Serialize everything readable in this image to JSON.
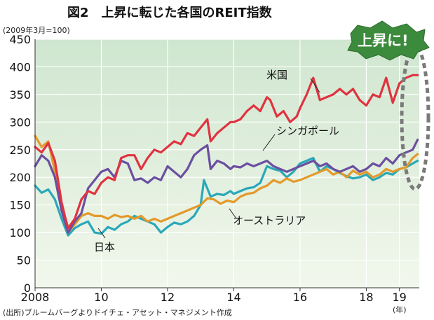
{
  "chart_data": {
    "type": "line",
    "title": "図2　上昇に転じた各国のREIT指数",
    "ylabel": "(2009年3月=100)",
    "xlabel": "(年)",
    "source": "(出所)ブルームバーグよりドイチェ・アセット・マネジメント作成",
    "callout": "上昇に!",
    "ylim": [
      0,
      450
    ],
    "yticks": [
      0,
      50,
      100,
      150,
      200,
      250,
      300,
      350,
      400,
      450
    ],
    "xlim": [
      2008.0,
      2019.6
    ],
    "xticks": [
      {
        "value": 2008,
        "label": "2008"
      },
      {
        "value": 2010,
        "label": "10"
      },
      {
        "value": 2012,
        "label": "12"
      },
      {
        "value": 2014,
        "label": "14"
      },
      {
        "value": 2016,
        "label": "16"
      },
      {
        "value": 2018,
        "label": "18"
      },
      {
        "value": 2019,
        "label": "19"
      }
    ],
    "grid": true,
    "series": [
      {
        "name": "米国",
        "color": "#e03340",
        "x": [
          2008.0,
          2008.2,
          2008.4,
          2008.6,
          2008.8,
          2008.9,
          2009.0,
          2009.2,
          2009.4,
          2009.6,
          2009.8,
          2010.0,
          2010.2,
          2010.4,
          2010.6,
          2010.8,
          2011.0,
          2011.2,
          2011.4,
          2011.6,
          2011.8,
          2012.0,
          2012.2,
          2012.4,
          2012.6,
          2012.8,
          2013.0,
          2013.2,
          2013.3,
          2013.5,
          2013.7,
          2013.9,
          2014.0,
          2014.2,
          2014.4,
          2014.6,
          2014.8,
          2015.0,
          2015.1,
          2015.3,
          2015.5,
          2015.7,
          2015.9,
          2016.0,
          2016.2,
          2016.4,
          2016.6,
          2016.8,
          2017.0,
          2017.2,
          2017.4,
          2017.6,
          2017.8,
          2018.0,
          2018.2,
          2018.4,
          2018.6,
          2018.8,
          2019.0,
          2019.2,
          2019.4,
          2019.55
        ],
        "values": [
          255,
          245,
          262,
          230,
          155,
          130,
          108,
          125,
          160,
          175,
          170,
          190,
          200,
          195,
          235,
          240,
          240,
          215,
          235,
          250,
          245,
          255,
          265,
          260,
          280,
          275,
          290,
          305,
          265,
          280,
          290,
          300,
          300,
          305,
          320,
          330,
          320,
          345,
          340,
          310,
          320,
          300,
          310,
          325,
          350,
          380,
          340,
          345,
          350,
          360,
          350,
          360,
          340,
          330,
          350,
          345,
          380,
          335,
          370,
          380,
          385,
          385
        ]
      },
      {
        "name": "シンガポール",
        "color": "#6b4fa0",
        "x": [
          2008.0,
          2008.2,
          2008.4,
          2008.6,
          2008.8,
          2009.0,
          2009.2,
          2009.4,
          2009.6,
          2009.8,
          2010.0,
          2010.2,
          2010.4,
          2010.6,
          2010.8,
          2011.0,
          2011.2,
          2011.4,
          2011.6,
          2011.8,
          2012.0,
          2012.2,
          2012.4,
          2012.6,
          2012.8,
          2013.0,
          2013.2,
          2013.3,
          2013.5,
          2013.7,
          2013.9,
          2014.0,
          2014.2,
          2014.4,
          2014.6,
          2014.8,
          2015.0,
          2015.2,
          2015.4,
          2015.6,
          2015.8,
          2016.0,
          2016.2,
          2016.4,
          2016.6,
          2016.8,
          2017.0,
          2017.2,
          2017.4,
          2017.6,
          2017.8,
          2018.0,
          2018.2,
          2018.4,
          2018.6,
          2018.8,
          2019.0,
          2019.2,
          2019.4,
          2019.55
        ],
        "values": [
          220,
          240,
          230,
          200,
          140,
          100,
          120,
          135,
          180,
          195,
          210,
          215,
          200,
          230,
          225,
          195,
          198,
          190,
          200,
          195,
          220,
          210,
          200,
          215,
          240,
          250,
          258,
          215,
          230,
          225,
          215,
          220,
          218,
          225,
          220,
          225,
          230,
          220,
          215,
          210,
          215,
          220,
          225,
          230,
          220,
          225,
          215,
          210,
          215,
          220,
          210,
          215,
          225,
          220,
          235,
          225,
          240,
          245,
          250,
          268
        ]
      },
      {
        "name": "オーストラリア",
        "color": "#e39a2a",
        "x": [
          2008.0,
          2008.2,
          2008.4,
          2008.6,
          2008.8,
          2009.0,
          2009.2,
          2009.4,
          2009.6,
          2009.8,
          2010.0,
          2010.2,
          2010.4,
          2010.6,
          2010.8,
          2011.0,
          2011.2,
          2011.4,
          2011.6,
          2011.8,
          2012.0,
          2012.2,
          2012.4,
          2012.6,
          2012.8,
          2013.0,
          2013.2,
          2013.4,
          2013.6,
          2013.8,
          2014.0,
          2014.2,
          2014.4,
          2014.6,
          2014.8,
          2015.0,
          2015.2,
          2015.4,
          2015.6,
          2015.8,
          2016.0,
          2016.2,
          2016.4,
          2016.6,
          2016.8,
          2017.0,
          2017.2,
          2017.4,
          2017.6,
          2017.8,
          2018.0,
          2018.2,
          2018.4,
          2018.6,
          2018.8,
          2019.0,
          2019.2,
          2019.4,
          2019.55
        ],
        "values": [
          275,
          255,
          265,
          210,
          140,
          100,
          115,
          130,
          135,
          130,
          130,
          125,
          132,
          128,
          130,
          125,
          130,
          120,
          125,
          120,
          125,
          130,
          135,
          140,
          145,
          150,
          162,
          160,
          152,
          158,
          155,
          165,
          170,
          172,
          180,
          185,
          195,
          190,
          198,
          192,
          195,
          200,
          205,
          210,
          215,
          205,
          210,
          200,
          212,
          205,
          210,
          200,
          205,
          215,
          210,
          215,
          218,
          235,
          242
        ]
      },
      {
        "name": "日本",
        "color": "#2aa8b8",
        "x": [
          2008.0,
          2008.2,
          2008.4,
          2008.6,
          2008.8,
          2009.0,
          2009.2,
          2009.4,
          2009.6,
          2009.8,
          2010.0,
          2010.2,
          2010.4,
          2010.6,
          2010.8,
          2011.0,
          2011.2,
          2011.4,
          2011.6,
          2011.8,
          2012.0,
          2012.2,
          2012.4,
          2012.6,
          2012.8,
          2013.0,
          2013.1,
          2013.3,
          2013.5,
          2013.7,
          2013.9,
          2014.0,
          2014.2,
          2014.4,
          2014.6,
          2014.8,
          2015.0,
          2015.2,
          2015.4,
          2015.6,
          2015.8,
          2016.0,
          2016.2,
          2016.4,
          2016.6,
          2016.8,
          2017.0,
          2017.2,
          2017.4,
          2017.6,
          2017.8,
          2018.0,
          2018.2,
          2018.4,
          2018.6,
          2018.8,
          2019.0,
          2019.2,
          2019.4,
          2019.55
        ],
        "values": [
          185,
          172,
          178,
          160,
          125,
          95,
          108,
          115,
          120,
          100,
          98,
          110,
          105,
          115,
          120,
          130,
          125,
          120,
          115,
          100,
          110,
          118,
          115,
          120,
          130,
          150,
          195,
          165,
          170,
          168,
          175,
          170,
          175,
          180,
          182,
          190,
          220,
          215,
          212,
          200,
          210,
          225,
          230,
          235,
          210,
          220,
          215,
          208,
          202,
          198,
          200,
          205,
          195,
          200,
          208,
          205,
          215,
          218,
          225,
          230
        ]
      }
    ],
    "annotation_labels": [
      "米国",
      "シンガポール",
      "オーストラリア",
      "日本"
    ]
  }
}
